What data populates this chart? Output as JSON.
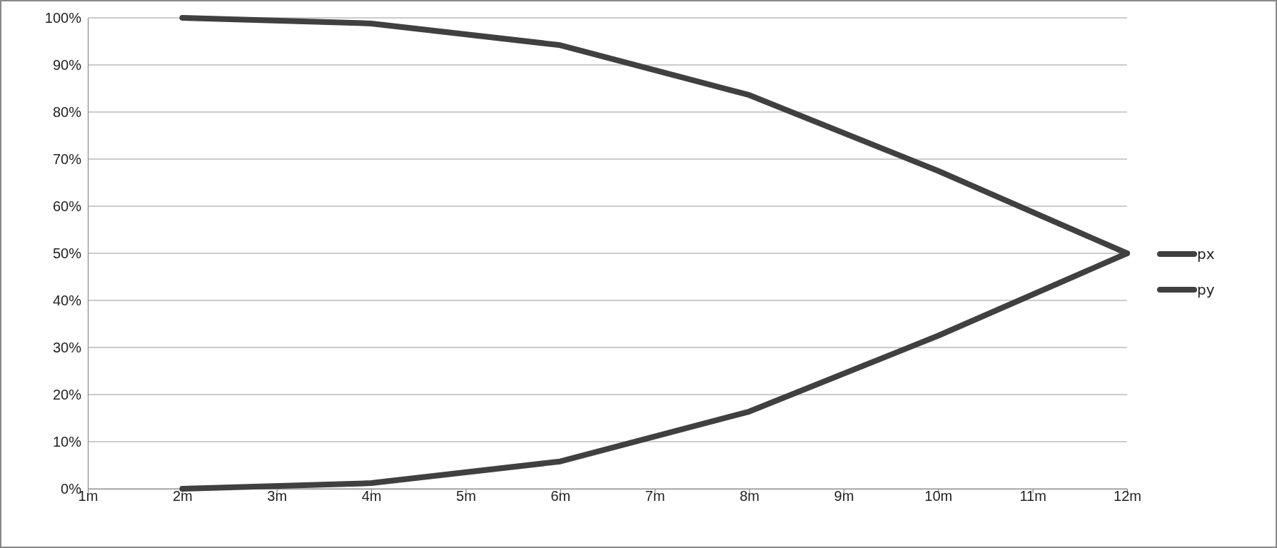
{
  "chart_data": {
    "type": "line",
    "x": [
      2,
      4,
      6,
      8,
      10,
      12
    ],
    "series": [
      {
        "name": "px",
        "color": "#404040",
        "values": [
          100,
          98.8,
          94.2,
          83.6,
          67.5,
          50
        ]
      },
      {
        "name": "py",
        "color": "#404040",
        "values": [
          0,
          1.2,
          5.8,
          16.4,
          32.5,
          50
        ]
      }
    ],
    "xlim": [
      1,
      12
    ],
    "xticks": [
      {
        "value": 1,
        "label": "1m"
      },
      {
        "value": 2,
        "label": "2m"
      },
      {
        "value": 3,
        "label": "3m"
      },
      {
        "value": 4,
        "label": "4m"
      },
      {
        "value": 5,
        "label": "5m"
      },
      {
        "value": 6,
        "label": "6m"
      },
      {
        "value": 7,
        "label": "7m"
      },
      {
        "value": 8,
        "label": "8m"
      },
      {
        "value": 9,
        "label": "9m"
      },
      {
        "value": 10,
        "label": "10m"
      },
      {
        "value": 11,
        "label": "11m"
      },
      {
        "value": 12,
        "label": "12m"
      }
    ],
    "ylim": [
      0,
      100
    ],
    "yticks": [
      {
        "value": 0,
        "label": "0%"
      },
      {
        "value": 10,
        "label": "10%"
      },
      {
        "value": 20,
        "label": "20%"
      },
      {
        "value": 30,
        "label": "30%"
      },
      {
        "value": 40,
        "label": "40%"
      },
      {
        "value": 50,
        "label": "50%"
      },
      {
        "value": 60,
        "label": "60%"
      },
      {
        "value": 70,
        "label": "70%"
      },
      {
        "value": 80,
        "label": "80%"
      },
      {
        "value": 90,
        "label": "90%"
      },
      {
        "value": 100,
        "label": "100%"
      }
    ],
    "grid": "y",
    "legend": "right",
    "marker": "none",
    "line_style": "solid"
  }
}
